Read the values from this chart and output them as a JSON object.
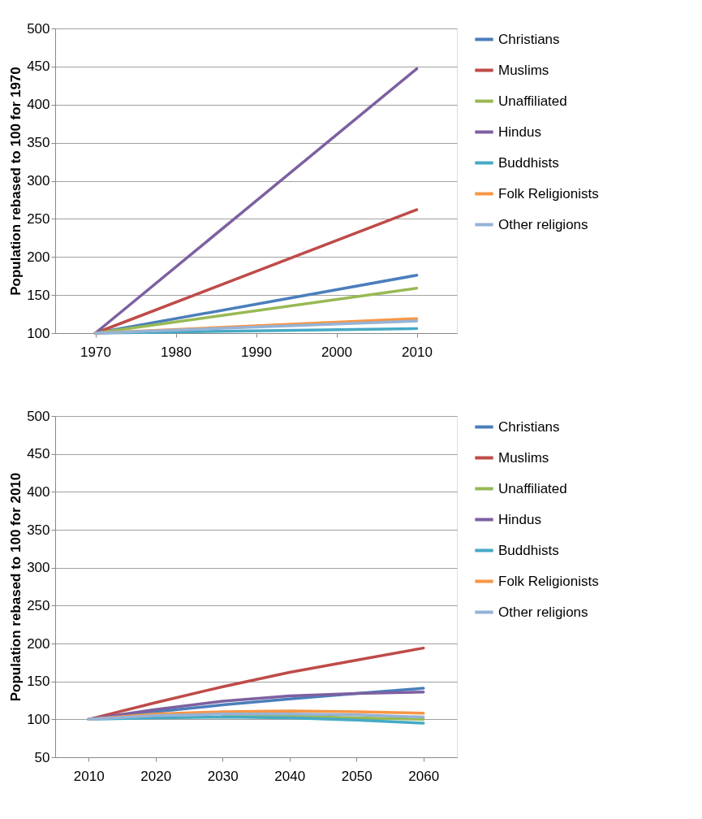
{
  "chart_data": [
    {
      "type": "line",
      "ylabel": "Population rebased to 100 for 1970",
      "x": [
        1970,
        2010
      ],
      "xlim": [
        1965,
        2015
      ],
      "xticks": [
        1970,
        1980,
        1990,
        2000,
        2010
      ],
      "ylim": [
        100,
        500
      ],
      "yticks": [
        100,
        150,
        200,
        250,
        300,
        350,
        400,
        450,
        500
      ],
      "grid": "y",
      "legend": "right",
      "marker": "none",
      "line_style": "solid",
      "series": [
        {
          "name": "Christians",
          "color": "#4a7ebb",
          "values": [
            100,
            176
          ]
        },
        {
          "name": "Muslims",
          "color": "#be4b48",
          "values": [
            100,
            262
          ]
        },
        {
          "name": "Unaffiliated",
          "color": "#98b954",
          "values": [
            100,
            159
          ]
        },
        {
          "name": "Hindus",
          "color": "#7d60a0",
          "values": [
            100,
            447
          ]
        },
        {
          "name": "Buddhists",
          "color": "#46aac5",
          "values": [
            100,
            106
          ]
        },
        {
          "name": "Folk Religionists",
          "color": "#f79646",
          "values": [
            100,
            119
          ]
        },
        {
          "name": "Other religions",
          "color": "#95b3d7",
          "values": [
            100,
            116
          ]
        }
      ]
    },
    {
      "type": "line",
      "ylabel": "Population rebased to 100 for 2010",
      "x": [
        2010,
        2020,
        2030,
        2040,
        2050,
        2060
      ],
      "xlim": [
        2005,
        2065
      ],
      "xticks": [
        2010,
        2020,
        2030,
        2040,
        2050,
        2060
      ],
      "ylim": [
        50,
        500
      ],
      "yticks": [
        50,
        100,
        150,
        200,
        250,
        300,
        350,
        400,
        450,
        500
      ],
      "grid": "y",
      "legend": "right",
      "marker": "none",
      "line_style": "solid",
      "series": [
        {
          "name": "Christians",
          "color": "#4a7ebb",
          "values": [
            100,
            110,
            119,
            127,
            134,
            141
          ]
        },
        {
          "name": "Muslims",
          "color": "#be4b48",
          "values": [
            100,
            122,
            143,
            162,
            178,
            194
          ]
        },
        {
          "name": "Unaffiliated",
          "color": "#98b954",
          "values": [
            null,
            null,
            104,
            104,
            102,
            100
          ]
        },
        {
          "name": "Hindus",
          "color": "#7d60a0",
          "values": [
            100,
            113,
            124,
            131,
            134,
            136
          ]
        },
        {
          "name": "Buddhists",
          "color": "#46aac5",
          "values": [
            100,
            102,
            103,
            102,
            99,
            95
          ]
        },
        {
          "name": "Folk Religionists",
          "color": "#f79646",
          "values": [
            100,
            107,
            110,
            111,
            110,
            108
          ]
        },
        {
          "name": "Other religions",
          "color": "#95b3d7",
          "values": [
            100,
            105,
            107,
            107,
            106,
            103
          ]
        }
      ]
    }
  ]
}
